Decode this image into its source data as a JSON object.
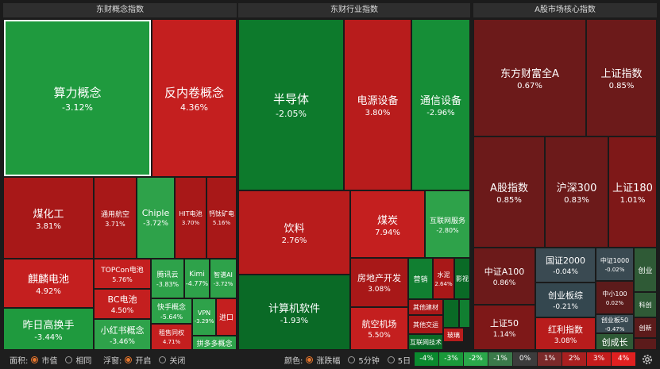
{
  "panels": {
    "concept": "东财概念指数",
    "industry": "东财行业指数",
    "core": "A股市场核心指数"
  },
  "tiles": {
    "suanli": {
      "name": "算力概念",
      "pct": "-3.12%"
    },
    "fanneijuan": {
      "name": "反内卷概念",
      "pct": "4.36%"
    },
    "meihuagong": {
      "name": "煤化工",
      "pct": "3.81%"
    },
    "tonghang": {
      "name": "通用航空",
      "pct": "3.71%"
    },
    "chiplet": {
      "name": "Chiple",
      "pct": "-3.72%"
    },
    "hit": {
      "name": "HIT电池",
      "pct": "3.70%"
    },
    "gaitai": {
      "name": "钙钛矿电",
      "pct": "5.16%"
    },
    "qilin": {
      "name": "麒麟电池",
      "pct": "4.92%"
    },
    "topcon": {
      "name": "TOPCon电池",
      "pct": "5.76%"
    },
    "tengxun": {
      "name": "腾讯云",
      "pct": "-3.83%"
    },
    "kimi": {
      "name": "Kimi",
      "pct": "-4.77%"
    },
    "zhipu": {
      "name": "智谱AI",
      "pct": "-3.72%"
    },
    "bc": {
      "name": "BC电池",
      "pct": "4.50%"
    },
    "kuaishou": {
      "name": "快手概念",
      "pct": "-5.64%"
    },
    "vpn": {
      "name": "VPN",
      "pct": "-3.29%"
    },
    "jinkou": {
      "name": "进口",
      "pct": ""
    },
    "zuolin": {
      "name": "租售同权",
      "pct": "4.71%"
    },
    "zuorigao": {
      "name": "昨日高换手",
      "pct": "-3.44%"
    },
    "xiaohongshu": {
      "name": "小红书概念",
      "pct": "-3.46%"
    },
    "pinduoduo": {
      "name": "拼多多概念",
      "pct": ""
    },
    "bandaoti": {
      "name": "半导体",
      "pct": "-2.05%"
    },
    "dianyuan": {
      "name": "电源设备",
      "pct": "3.80%"
    },
    "tongxin": {
      "name": "通信设备",
      "pct": "-2.96%"
    },
    "yinliao": {
      "name": "饮料",
      "pct": "2.76%"
    },
    "meitan": {
      "name": "煤炭",
      "pct": "7.94%"
    },
    "hulianwang": {
      "name": "互联网服务",
      "pct": "-2.80%"
    },
    "jisuanji": {
      "name": "计算机软件",
      "pct": "-1.93%"
    },
    "fangdichan": {
      "name": "房地产开发",
      "pct": "3.08%"
    },
    "yingxiao": {
      "name": "营销",
      "pct": ""
    },
    "shuini": {
      "name": "水泥",
      "pct": "2.64%"
    },
    "yingshi": {
      "name": "影视",
      "pct": ""
    },
    "qitajiancai": {
      "name": "其他建材",
      "pct": ""
    },
    "hangkong": {
      "name": "航空机场",
      "pct": "5.50%"
    },
    "qitajiaoyun": {
      "name": "其他交运",
      "pct": ""
    },
    "boli": {
      "name": "玻璃",
      "pct": ""
    },
    "hulianwangjishu": {
      "name": "互联网技术",
      "pct": ""
    },
    "dongcai": {
      "name": "东方财富全A",
      "pct": "0.67%"
    },
    "shangzheng": {
      "name": "上证指数",
      "pct": "0.85%"
    },
    "agu": {
      "name": "A股指数",
      "pct": "0.85%"
    },
    "hushen300": {
      "name": "沪深300",
      "pct": "0.83%"
    },
    "shangzheng180": {
      "name": "上证180",
      "pct": "1.01%"
    },
    "zhongzhenga100": {
      "name": "中证A100",
      "pct": "0.86%"
    },
    "guozheng2000": {
      "name": "国证2000",
      "pct": "-0.04%"
    },
    "zhongzheng1000": {
      "name": "中证1000",
      "pct": "-0.02%"
    },
    "chuangye": {
      "name": "创业",
      "pct": ""
    },
    "chuangyebanzong": {
      "name": "创业板综",
      "pct": "-0.21%"
    },
    "zhongxiao100": {
      "name": "中小100",
      "pct": "0.02%"
    },
    "kechuang": {
      "name": "科创",
      "pct": ""
    },
    "chuangyeban50": {
      "name": "创业板50",
      "pct": "-0.47%"
    },
    "chuangxin": {
      "name": "创新",
      "pct": ""
    },
    "shangzheng50": {
      "name": "上证50",
      "pct": "1.14%"
    },
    "hongli": {
      "name": "红利指数",
      "pct": "3.08%"
    },
    "chuangchengzhang": {
      "name": "创成长",
      "pct": ""
    }
  },
  "footer": {
    "area_label": "面积:",
    "area_opt1": "市值",
    "area_opt2": "相同",
    "float_label": "浮窗:",
    "float_opt1": "开启",
    "float_opt2": "关闭",
    "color_label": "颜色:",
    "color_opt1": "涨跌幅",
    "color_opt2": "5分钟",
    "color_opt3": "5日",
    "legend": [
      "-4%",
      "-3%",
      "-2%",
      "-1%",
      "0%",
      "1%",
      "2%",
      "3%",
      "4%"
    ],
    "legend_colors": [
      "#0a8a2e",
      "#1a9a3a",
      "#2aa84a",
      "#3a7a4a",
      "#3c3c3c",
      "#7a2a2a",
      "#a82020",
      "#c41c1c",
      "#e02020"
    ],
    "settings_icon": "gear-icon"
  }
}
